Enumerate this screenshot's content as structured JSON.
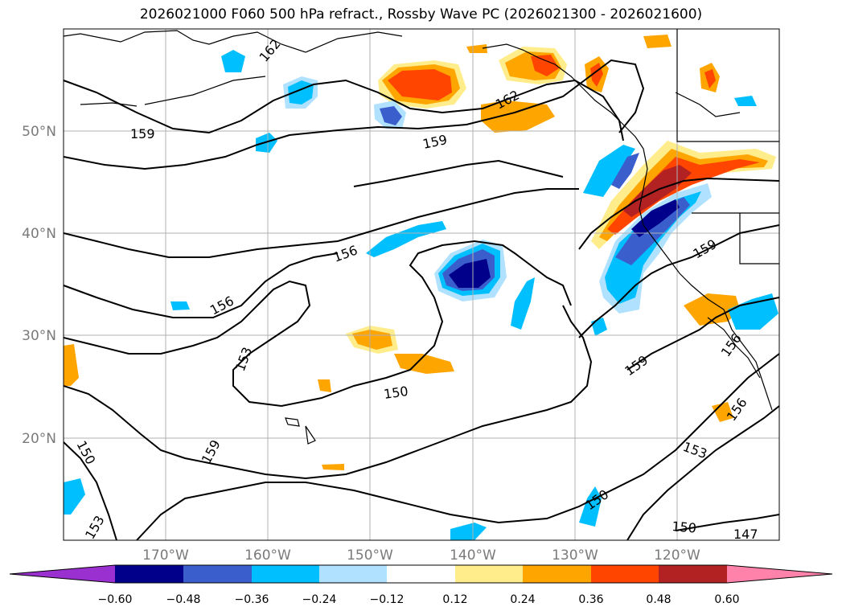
{
  "title": "2026021000 F060 500 hPa refract., Rossby Wave PC (2026021300 - 2026021600)",
  "lat_labels": [
    "50°N",
    "40°N",
    "30°N",
    "20°N"
  ],
  "lon_labels": [
    "170°W",
    "160°W",
    "150°W",
    "140°W",
    "130°W",
    "120°W"
  ],
  "contour_labels": [
    "159",
    "162",
    "159",
    "156",
    "156",
    "153",
    "150",
    "159",
    "150",
    "159",
    "159",
    "156",
    "156",
    "153",
    "150",
    "150",
    "147",
    "153",
    "162"
  ],
  "colorbar": {
    "ticks": [
      "−0.60",
      "−0.48",
      "−0.36",
      "−0.24",
      "−0.12",
      "0.12",
      "0.24",
      "0.36",
      "0.48",
      "0.60"
    ],
    "colors": [
      "#9b30d0",
      "#00008b",
      "#3a5fcd",
      "#00bfff",
      "#b0e2ff",
      "#ffffff",
      "#ffec8b",
      "#ffa500",
      "#ff4500",
      "#b22222",
      "#ff82ab"
    ]
  }
}
